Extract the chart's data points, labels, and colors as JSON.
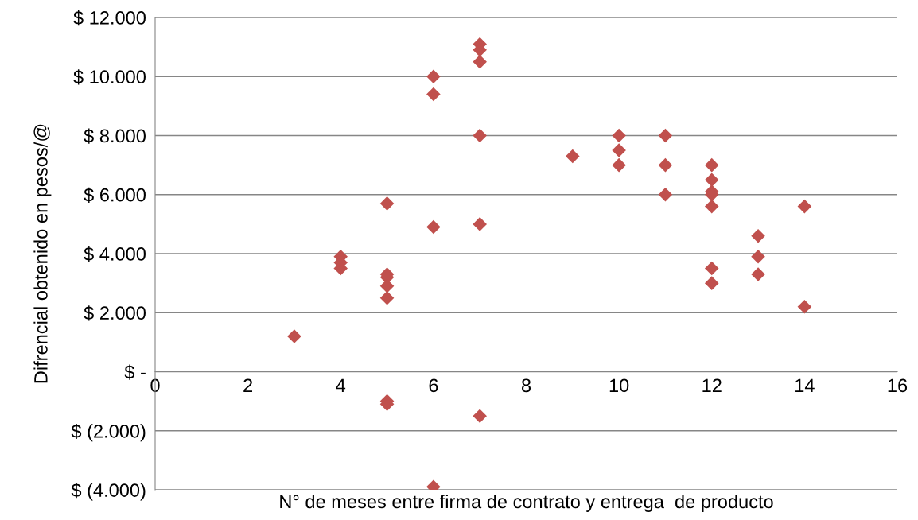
{
  "chart_data": {
    "type": "scatter",
    "xlabel": "N° de meses entre firma de contrato y entrega  de producto",
    "ylabel": "Difrencial obtenido en pesos/@",
    "x": [
      3,
      4,
      4,
      4,
      5,
      5,
      5,
      5,
      5,
      5,
      5,
      6,
      6,
      6,
      6,
      7,
      7,
      7,
      7,
      7,
      7,
      9,
      10,
      10,
      10,
      11,
      11,
      11,
      12,
      12,
      12,
      12,
      12,
      12,
      12,
      13,
      13,
      13,
      14,
      14
    ],
    "series": [
      {
        "color": "#c0504d",
        "values": [
          1200,
          3900,
          3700,
          3500,
          5700,
          3300,
          3200,
          2900,
          2500,
          -1000,
          -1100,
          10000,
          9400,
          4900,
          -3900,
          11100,
          10900,
          10500,
          8000,
          5000,
          -1500,
          7300,
          8000,
          7500,
          7000,
          8000,
          7000,
          6000,
          7000,
          6500,
          6100,
          6000,
          5600,
          3500,
          3000,
          4600,
          3900,
          3300,
          5600,
          2200
        ]
      }
    ],
    "marker": "diamond",
    "grid": "y",
    "legend": false,
    "xlim": [
      0,
      16
    ],
    "xticks": [
      0,
      2,
      4,
      6,
      8,
      10,
      12,
      14,
      16
    ],
    "ylim": [
      -4000,
      12000
    ],
    "yticks": [
      {
        "value": -4000,
        "label": "$ (4.000)"
      },
      {
        "value": -2000,
        "label": "$ (2.000)"
      },
      {
        "value": 0,
        "label": "$ -"
      },
      {
        "value": 2000,
        "label": "$ 2.000"
      },
      {
        "value": 4000,
        "label": "$ 4.000"
      },
      {
        "value": 6000,
        "label": "$ 6.000"
      },
      {
        "value": 8000,
        "label": "$ 8.000"
      },
      {
        "value": 10000,
        "label": "$ 10.000"
      },
      {
        "value": 12000,
        "label": "$ 12.000"
      }
    ]
  }
}
